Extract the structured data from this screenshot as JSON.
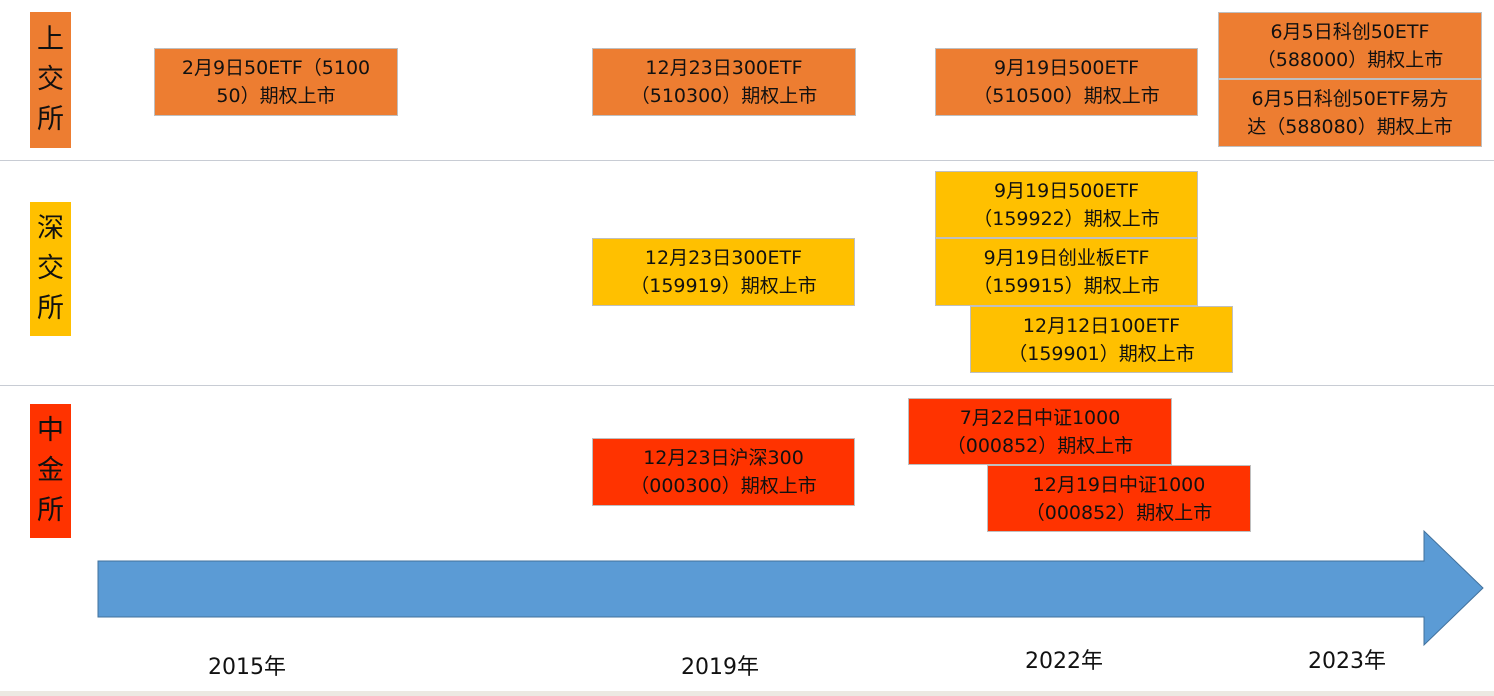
{
  "exchanges": [
    {
      "id": "sse",
      "chars": [
        "上",
        "交",
        "所"
      ],
      "color": "#ed7d31"
    },
    {
      "id": "szse",
      "chars": [
        "深",
        "交",
        "所"
      ],
      "color": "#ffc000"
    },
    {
      "id": "cffex",
      "chars": [
        "中",
        "金",
        "所"
      ],
      "color": "#ff3300"
    }
  ],
  "events": {
    "sse": [
      {
        "lines": [
          "2月9日50ETF（5100",
          "50）期权上市"
        ]
      },
      {
        "lines": [
          "12月23日300ETF",
          "（510300）期权上市"
        ]
      },
      {
        "lines": [
          "9月19日500ETF",
          "（510500）期权上市"
        ]
      },
      {
        "lines": [
          "6月5日科创50ETF",
          "（588000）期权上市"
        ]
      },
      {
        "lines": [
          "6月5日科创50ETF易方",
          "达（588080）期权上市"
        ]
      }
    ],
    "szse": [
      {
        "lines": [
          "12月23日300ETF",
          "（159919）期权上市"
        ]
      },
      {
        "lines": [
          "9月19日500ETF",
          "（159922）期权上市"
        ]
      },
      {
        "lines": [
          "9月19日创业板ETF",
          "（159915）期权上市"
        ]
      },
      {
        "lines": [
          "12月12日100ETF",
          "（159901）期权上市"
        ]
      }
    ],
    "cffex": [
      {
        "lines": [
          "12月23日沪深300",
          "（000300）期权上市"
        ]
      },
      {
        "lines": [
          "7月22日中证1000",
          "（000852）期权上市"
        ]
      },
      {
        "lines": [
          "12月19日中证1000",
          "（000852）期权上市"
        ]
      }
    ]
  },
  "timeline": {
    "years": [
      "2015年",
      "2019年",
      "2022年",
      "2023年"
    ],
    "arrow_color": "#5b9bd5"
  }
}
